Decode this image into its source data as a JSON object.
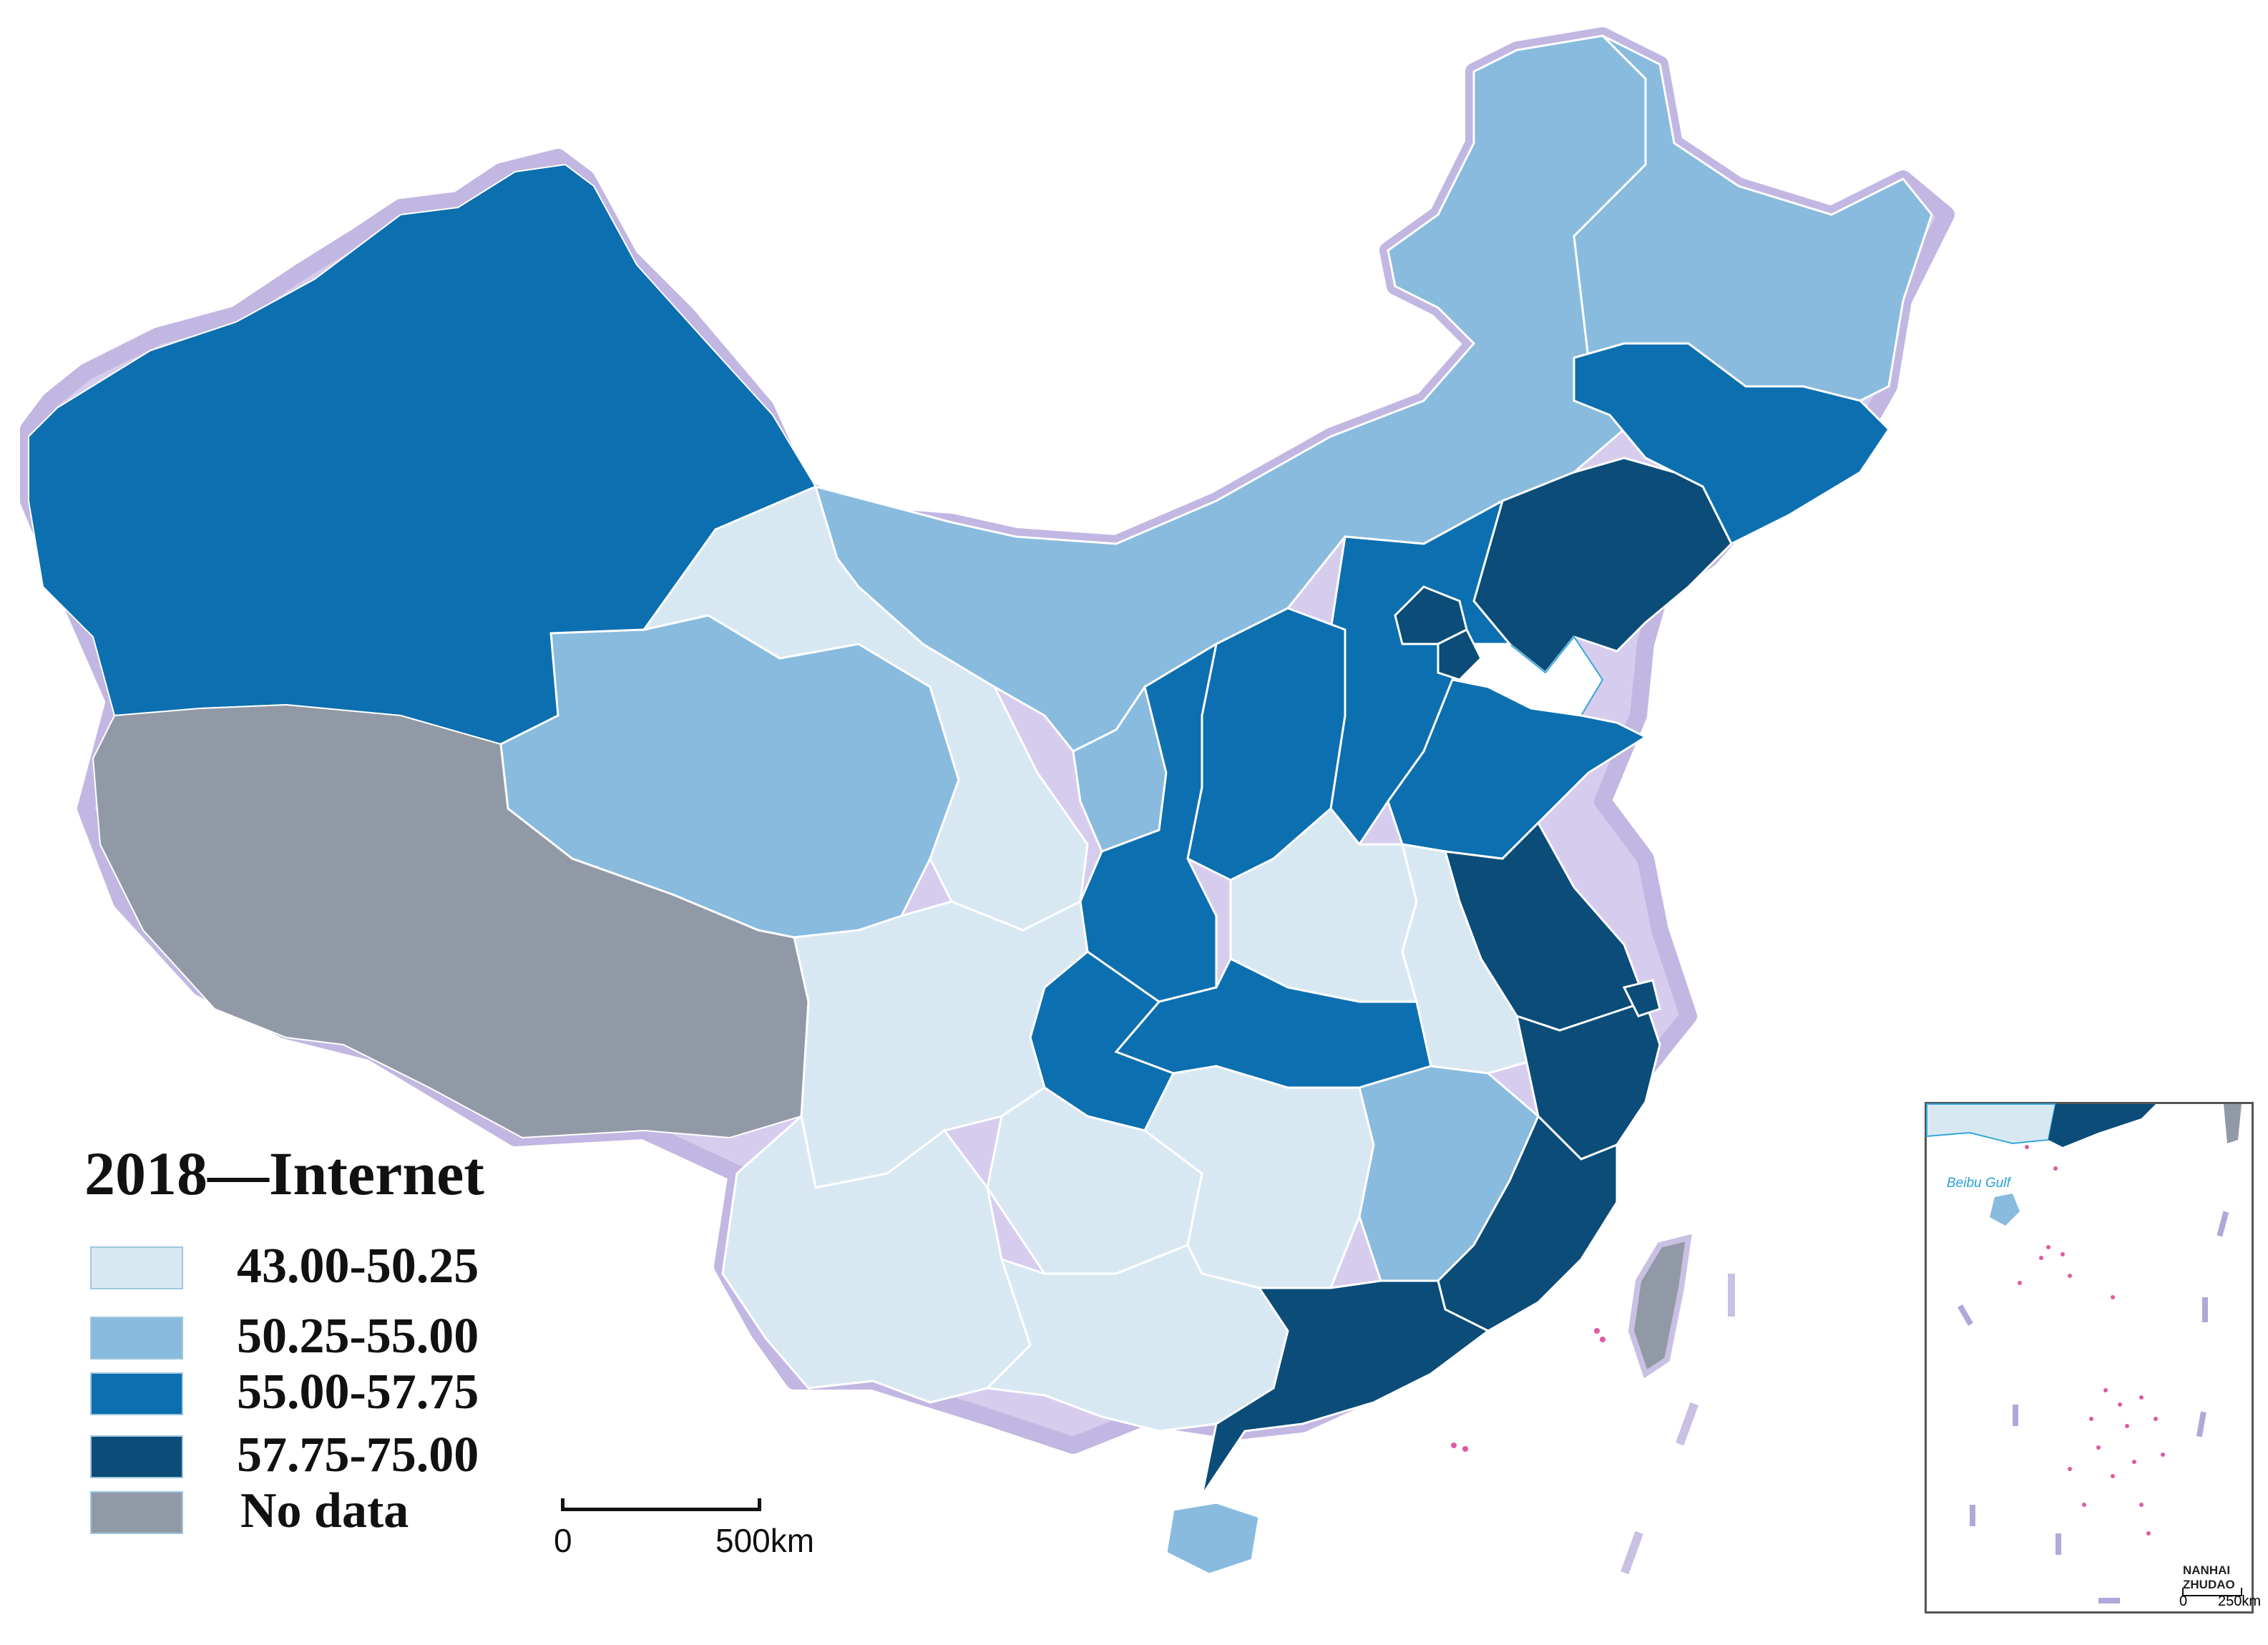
{
  "legend": {
    "title": "2018—Internet",
    "classes": [
      {
        "label": "43.00-50.25",
        "color": "#d8e8f3"
      },
      {
        "label": "50.25-55.00",
        "color": "#88bbde"
      },
      {
        "label": "55.00-57.75",
        "color": "#0c6fb0"
      },
      {
        "label": "57.75-75.00",
        "color": "#0b4c78"
      },
      {
        "label": "No data",
        "color": "#9299a6"
      }
    ]
  },
  "scale": {
    "start": "0",
    "end": "500km"
  },
  "inset": {
    "label": "NANHAI ZHUDAO",
    "gulf": "Beibu Gulf",
    "scale_start": "0",
    "scale_end": "250km"
  },
  "colors": {
    "border_halo": "#c9c0e4",
    "coast_line": "#35a6dc",
    "island_marks": "#e05aa0"
  }
}
